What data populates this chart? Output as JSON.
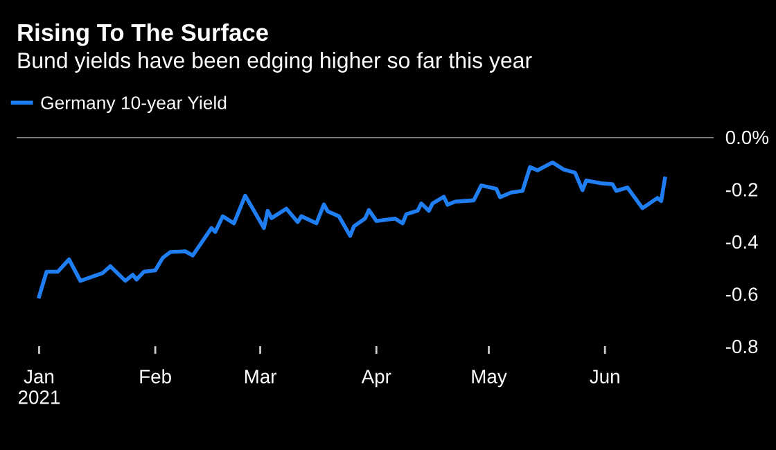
{
  "chart_data": {
    "type": "line",
    "title": "Rising To The Surface",
    "subtitle": "Bund yields have been edging higher so far this year",
    "x": [
      "2021-01-01",
      "2021-01-03",
      "2021-01-06",
      "2021-01-09",
      "2021-01-12",
      "2021-01-18",
      "2021-01-20",
      "2021-01-24",
      "2021-01-26",
      "2021-01-27",
      "2021-01-29",
      "2021-02-01",
      "2021-02-03",
      "2021-02-05",
      "2021-02-09",
      "2021-02-11",
      "2021-02-16",
      "2021-02-17",
      "2021-02-19",
      "2021-02-22",
      "2021-02-25",
      "2021-03-02",
      "2021-03-03",
      "2021-03-04",
      "2021-03-08",
      "2021-03-11",
      "2021-03-12",
      "2021-03-16",
      "2021-03-18",
      "2021-03-19",
      "2021-03-22",
      "2021-03-25",
      "2021-03-26",
      "2021-03-29",
      "2021-03-30",
      "2021-04-01",
      "2021-04-06",
      "2021-04-08",
      "2021-04-09",
      "2021-04-12",
      "2021-04-13",
      "2021-04-15",
      "2021-04-16",
      "2021-04-19",
      "2021-04-20",
      "2021-04-22",
      "2021-04-27",
      "2021-04-29",
      "2021-05-03",
      "2021-05-04",
      "2021-05-07",
      "2021-05-10",
      "2021-05-12",
      "2021-05-14",
      "2021-05-18",
      "2021-05-21",
      "2021-05-24",
      "2021-05-26",
      "2021-05-27",
      "2021-05-31",
      "2021-06-03",
      "2021-06-04",
      "2021-06-07",
      "2021-06-11",
      "2021-06-15",
      "2021-06-16",
      "2021-06-17"
    ],
    "series": [
      {
        "name": "Germany 10-year Yield",
        "color": "#1f7ef2",
        "values": [
          -0.61,
          -0.515,
          -0.515,
          -0.468,
          -0.55,
          -0.52,
          -0.494,
          -0.55,
          -0.527,
          -0.545,
          -0.515,
          -0.51,
          -0.462,
          -0.44,
          -0.437,
          -0.453,
          -0.348,
          -0.363,
          -0.303,
          -0.33,
          -0.224,
          -0.348,
          -0.282,
          -0.31,
          -0.274,
          -0.325,
          -0.303,
          -0.33,
          -0.258,
          -0.284,
          -0.303,
          -0.378,
          -0.342,
          -0.311,
          -0.279,
          -0.321,
          -0.312,
          -0.33,
          -0.295,
          -0.282,
          -0.254,
          -0.282,
          -0.254,
          -0.228,
          -0.259,
          -0.247,
          -0.242,
          -0.185,
          -0.198,
          -0.23,
          -0.212,
          -0.206,
          -0.115,
          -0.127,
          -0.097,
          -0.124,
          -0.136,
          -0.203,
          -0.166,
          -0.177,
          -0.18,
          -0.206,
          -0.193,
          -0.272,
          -0.233,
          -0.245,
          -0.159
        ]
      }
    ],
    "xlim": [
      "2020-12-26",
      "2021-06-30"
    ],
    "xticks": [
      {
        "value": "2021-01-01",
        "label": "Jan\n2021"
      },
      {
        "value": "2021-02-01",
        "label": "Feb"
      },
      {
        "value": "2021-03-01",
        "label": "Mar"
      },
      {
        "value": "2021-04-01",
        "label": "Apr"
      },
      {
        "value": "2021-05-01",
        "label": "May"
      },
      {
        "value": "2021-06-01",
        "label": "Jun"
      }
    ],
    "ylim": [
      -0.8,
      0
    ],
    "yticks": [
      {
        "value": 0,
        "label": "0.0%"
      },
      -0.2,
      -0.4,
      -0.6,
      -0.8
    ],
    "ref_lines": [
      {
        "axis": "y",
        "value": 0
      }
    ],
    "legend": "top left",
    "grid": false
  }
}
